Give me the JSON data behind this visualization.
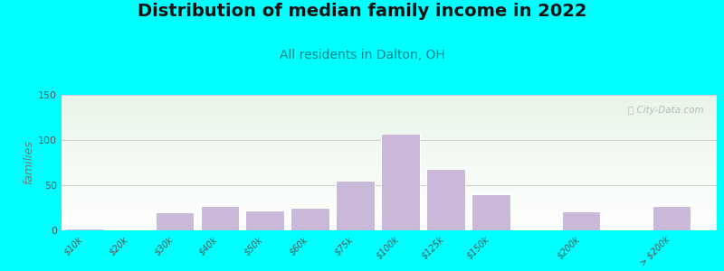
{
  "title": "Distribution of median family income in 2022",
  "subtitle": "All residents in Dalton, OH",
  "ylabel": "families",
  "background_outer": "#00FFFF",
  "background_inner_top": "#e8f5e8",
  "bar_color": "#c9b8d8",
  "bar_edgecolor": "#ffffff",
  "title_fontsize": 14,
  "subtitle_fontsize": 10,
  "subtitle_color": "#008888",
  "ylabel_color": "#777777",
  "categories": [
    "$10k",
    "$20k",
    "$30k",
    "$40k",
    "$50k",
    "$60k",
    "$75k",
    "$100k",
    "$125k",
    "$150k",
    "$200k",
    "> $200k"
  ],
  "positions": [
    0,
    1,
    2,
    3,
    4,
    5,
    6,
    7,
    8,
    9,
    11,
    13
  ],
  "values": [
    2,
    0,
    20,
    27,
    22,
    25,
    55,
    107,
    68,
    40,
    21,
    27
  ],
  "ylim": [
    0,
    150
  ],
  "yticks": [
    0,
    50,
    100,
    150
  ],
  "watermark": "Ⓢ City-Data.com",
  "xlim_min": -0.5,
  "xlim_max": 14.0,
  "bar_width": 0.85
}
